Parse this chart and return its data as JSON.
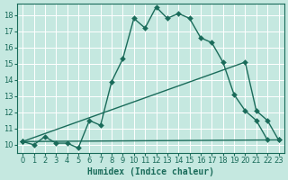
{
  "xlabel": "Humidex (Indice chaleur)",
  "background_color": "#c5e8e0",
  "grid_color": "#ffffff",
  "line_color": "#1a6b5a",
  "xlim": [
    -0.5,
    23.5
  ],
  "ylim": [
    9.5,
    18.7
  ],
  "xticks": [
    0,
    1,
    2,
    3,
    4,
    5,
    6,
    7,
    8,
    9,
    10,
    11,
    12,
    13,
    14,
    15,
    16,
    17,
    18,
    19,
    20,
    21,
    22,
    23
  ],
  "yticks": [
    10,
    11,
    12,
    13,
    14,
    15,
    16,
    17,
    18
  ],
  "line1_x": [
    0,
    1,
    2,
    3,
    4,
    5,
    6,
    7,
    8,
    9,
    10,
    11,
    12,
    13,
    14,
    15,
    16,
    17,
    18,
    19,
    20,
    21,
    22,
    23
  ],
  "line1_y": [
    10.2,
    10.0,
    10.5,
    10.1,
    10.1,
    9.8,
    11.5,
    11.2,
    13.9,
    15.3,
    17.8,
    17.2,
    18.5,
    17.8,
    18.1,
    17.8,
    16.6,
    16.3,
    15.1,
    13.1,
    12.1,
    11.5,
    10.3,
    null
  ],
  "line2_x": [
    0,
    23
  ],
  "line2_y": [
    10.2,
    10.3
  ],
  "line3_x": [
    0,
    20,
    21,
    22,
    23
  ],
  "line3_y": [
    10.2,
    15.1,
    12.1,
    11.5,
    10.3
  ],
  "marker_size": 3,
  "line_width": 1.0
}
